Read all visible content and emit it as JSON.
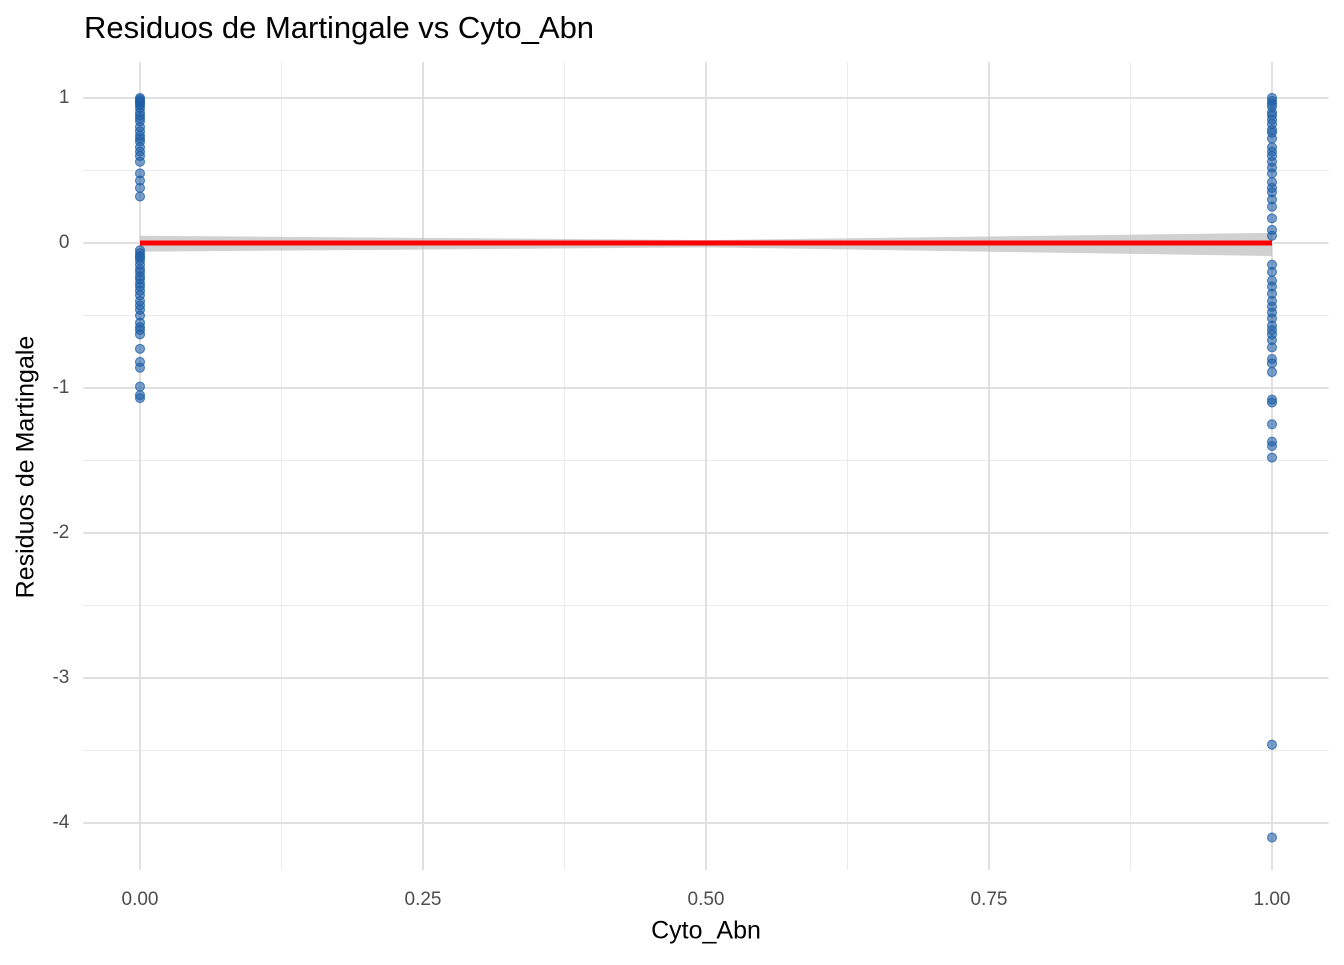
{
  "chart_data": {
    "type": "scatter",
    "title": "Residuos de Martingale vs Cyto_Abn",
    "x_label": "Cyto_Abn",
    "y_label": "Residuos de Martingale",
    "xlim": [
      -0.05,
      1.05
    ],
    "ylim": [
      -4.324,
      1.248
    ],
    "xticks": [
      {
        "value": 0,
        "label": "0.00"
      },
      {
        "value": 0.25,
        "label": "0.25"
      },
      {
        "value": 0.5,
        "label": "0.50"
      },
      {
        "value": 0.75,
        "label": "0.75"
      },
      {
        "value": 1,
        "label": "1.00"
      }
    ],
    "yticks": [
      -4,
      -3,
      -2,
      -1,
      0,
      1
    ],
    "grid": true,
    "minor_grid": true,
    "points": {
      "color": "#1f5fa6",
      "x": [
        0,
        0,
        0,
        0,
        0,
        0,
        0,
        0,
        0,
        0,
        0,
        0,
        0,
        0,
        0,
        0,
        0,
        0,
        0,
        0,
        0,
        0,
        0,
        0,
        0,
        0,
        0,
        0,
        0,
        0,
        0,
        0,
        0,
        0,
        0,
        0,
        0,
        0,
        0,
        0,
        0,
        0,
        0,
        0,
        0,
        0,
        0,
        0,
        0,
        0,
        0,
        0,
        1,
        1,
        1,
        1,
        1,
        1,
        1,
        1,
        1,
        1,
        1,
        1,
        1,
        1,
        1,
        1,
        1,
        1,
        1,
        1,
        1,
        1,
        1,
        1,
        1,
        1,
        1,
        1,
        1,
        1,
        1,
        1,
        1,
        1,
        1,
        1,
        1,
        1,
        1,
        1,
        1,
        1,
        1,
        1,
        1,
        1,
        1,
        1,
        1,
        1
      ],
      "y": [
        1.0,
        0.99,
        0.98,
        0.97,
        0.96,
        0.95,
        0.93,
        0.9,
        0.88,
        0.86,
        0.84,
        0.8,
        0.77,
        0.74,
        0.72,
        0.7,
        0.66,
        0.63,
        0.6,
        0.56,
        0.48,
        0.43,
        0.38,
        0.32,
        -0.05,
        -0.07,
        -0.09,
        -0.1,
        -0.12,
        -0.15,
        -0.18,
        -0.2,
        -0.23,
        -0.25,
        -0.28,
        -0.3,
        -0.33,
        -0.36,
        -0.4,
        -0.43,
        -0.46,
        -0.5,
        -0.55,
        -0.58,
        -0.6,
        -0.63,
        -0.73,
        -0.82,
        -0.86,
        -0.99,
        -1.05,
        -1.07,
        1.0,
        0.98,
        0.96,
        0.94,
        0.9,
        0.88,
        0.85,
        0.82,
        0.78,
        0.76,
        0.72,
        0.66,
        0.63,
        0.6,
        0.56,
        0.52,
        0.48,
        0.42,
        0.38,
        0.35,
        0.3,
        0.25,
        0.17,
        0.09,
        0.05,
        -0.15,
        -0.2,
        -0.26,
        -0.3,
        -0.35,
        -0.4,
        -0.44,
        -0.48,
        -0.52,
        -0.57,
        -0.6,
        -0.63,
        -0.67,
        -0.72,
        -0.8,
        -0.83,
        -0.89,
        -1.08,
        -1.1,
        -1.25,
        -1.37,
        -1.4,
        -1.48,
        -3.46,
        -4.1
      ]
    },
    "fit": {
      "color": "#ff0000",
      "band_color": "#bdbdbd",
      "x": [
        0,
        0.5,
        1
      ],
      "y": [
        0,
        0,
        0
      ],
      "ci_lower": [
        -0.06,
        -0.03,
        -0.09
      ],
      "ci_upper": [
        0.05,
        0.02,
        0.07
      ]
    }
  }
}
